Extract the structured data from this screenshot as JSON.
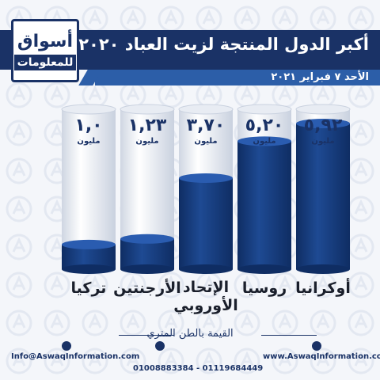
{
  "header": {
    "title": "أكبر الدول المنتجة لزيت العباد ٢٠٢٠",
    "date": "الأحد ٧ فبراير ٢٠٢١",
    "logo_top": "أسواق",
    "logo_bottom": "للمعلومات"
  },
  "chart_data": {
    "type": "bar",
    "title": "أكبر الدول المنتجة لزيت العباد ٢٠٢٠",
    "categories": [
      "أوكرانيا",
      "روسيا",
      "الإتحاد الأوروبي",
      "الأرجنتين",
      "تركيا"
    ],
    "values": [
      5.92,
      5.2,
      3.7,
      1.23,
      1.0
    ],
    "value_labels": [
      "٥,٩٢",
      "٥,٢٠",
      "٣,٧٠",
      "١,٢٣",
      "١,٠"
    ],
    "unit_label": "مليون",
    "ylabel": "القيمة بالطن المتري",
    "ylim": [
      0,
      6.5
    ],
    "colors": {
      "bar": "#1e4a93",
      "bar_dark": "#0f2d63",
      "cylinder": "#ffffff",
      "text": "#1a3266"
    }
  },
  "footer": {
    "unit_caption": "القيمة بالطن المتري",
    "email": "Info@AswaqInformation.com",
    "website": "www.AswaqInformation.com",
    "phones": "01008883384 - 01119684449",
    "icons": [
      "email-icon",
      "phone-icon",
      "globe-icon"
    ]
  }
}
